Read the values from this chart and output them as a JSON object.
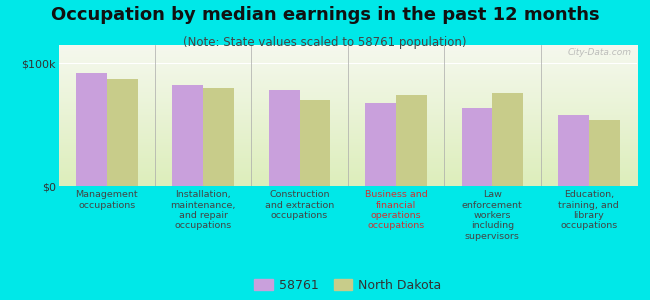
{
  "title": "Occupation by median earnings in the past 12 months",
  "subtitle": "(Note: State values scaled to 58761 population)",
  "categories": [
    "Management\noccupations",
    "Installation,\nmaintenance,\nand repair\noccupations",
    "Construction\nand extraction\noccupations",
    "Business and\nfinancial\noperations\noccupations",
    "Law\nenforcement\nworkers\nincluding\nsupervisors",
    "Education,\ntraining, and\nlibrary\noccupations"
  ],
  "values_58761": [
    92000,
    82000,
    78000,
    68000,
    64000,
    58000
  ],
  "values_nd": [
    87000,
    80000,
    70000,
    74000,
    76000,
    54000
  ],
  "color_58761": "#c9a0dc",
  "color_nd": "#c8cc8a",
  "bar_width": 0.32,
  "ylim": [
    0,
    115000
  ],
  "yticks": [
    0,
    100000
  ],
  "ytick_labels": [
    "$0",
    "$100k"
  ],
  "legend_labels": [
    "58761",
    "North Dakota"
  ],
  "background_outer": "#00e8e8",
  "background_inner_top": "#f5f8ee",
  "background_inner_bottom": "#ddeebb",
  "watermark": "City-Data.com",
  "title_fontsize": 13,
  "subtitle_fontsize": 8.5,
  "label_fontsize": 6.8,
  "ytick_fontsize": 8,
  "category_label_color_default": "#444444",
  "category_label_color_3": "#cc3333",
  "title_color": "#111111",
  "subtitle_color": "#444444"
}
